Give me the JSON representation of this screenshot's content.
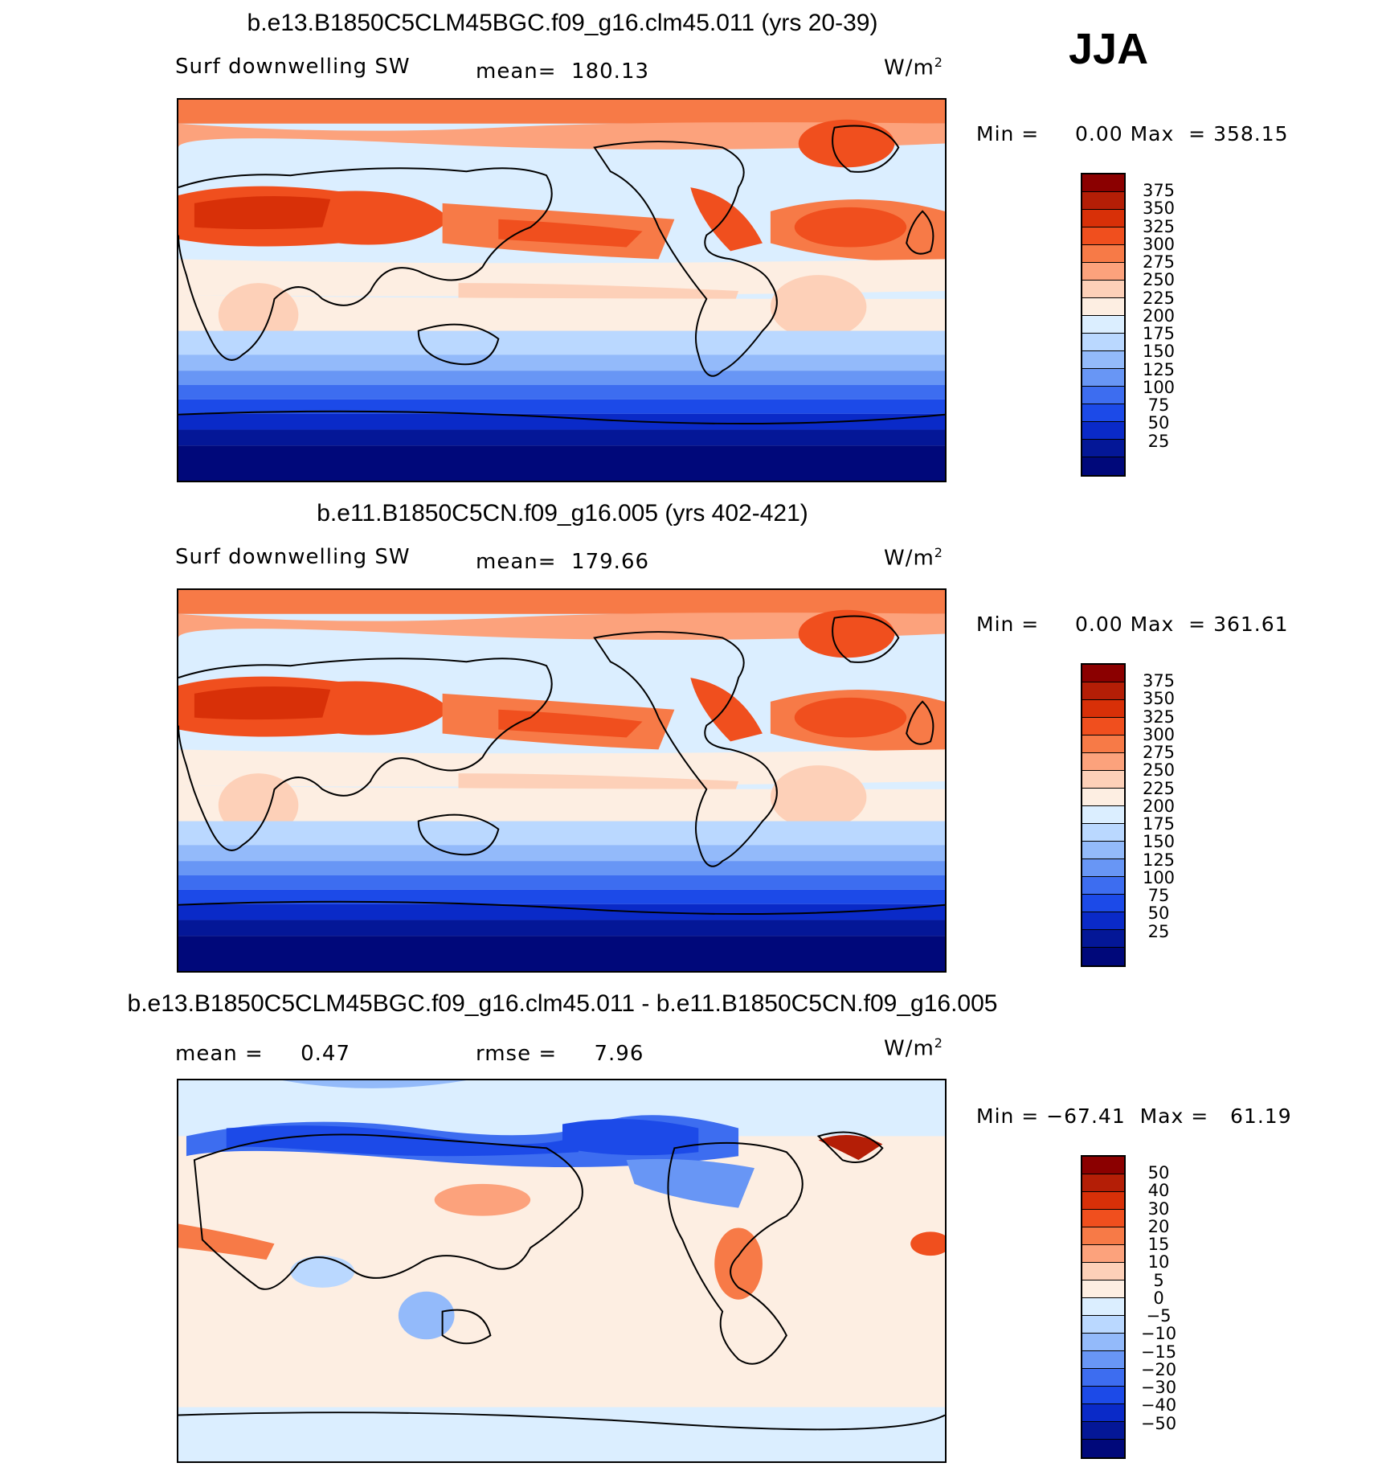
{
  "season": "JJA",
  "panels": [
    {
      "title": "b.e13.B1850C5CLM45BGC.f09_g16.clm45.011 (yrs 20-39)",
      "variable": "Surf downwelling SW",
      "stat": "mean=  180.13",
      "units": "W/m",
      "units_exp": "2",
      "minmax": "Min =     0.00 Max  = 358.15",
      "colorbar": {
        "colors": [
          "#8b0000",
          "#b41e06",
          "#d83008",
          "#f04f1e",
          "#f77a47",
          "#fca27c",
          "#fdd0b8",
          "#fdeee2",
          "#dbeeff",
          "#bad8ff",
          "#93bafa",
          "#6896f5",
          "#3d6df0",
          "#1c4ae8",
          "#0a2ac8",
          "#041797",
          "#00087a"
        ],
        "ticks": [
          "375",
          "350",
          "325",
          "300",
          "275",
          "250",
          "225",
          "200",
          "175",
          "150",
          "125",
          "100",
          "75",
          "50",
          "25"
        ]
      }
    },
    {
      "title": "b.e11.B1850C5CN.f09_g16.005 (yrs 402-421)",
      "variable": "Surf downwelling SW",
      "stat": "mean=  179.66",
      "units": "W/m",
      "units_exp": "2",
      "minmax": "Min =     0.00 Max  = 361.61",
      "colorbar": {
        "colors": [
          "#8b0000",
          "#b41e06",
          "#d83008",
          "#f04f1e",
          "#f77a47",
          "#fca27c",
          "#fdd0b8",
          "#fdeee2",
          "#dbeeff",
          "#bad8ff",
          "#93bafa",
          "#6896f5",
          "#3d6df0",
          "#1c4ae8",
          "#0a2ac8",
          "#041797",
          "#00087a"
        ],
        "ticks": [
          "375",
          "350",
          "325",
          "300",
          "275",
          "250",
          "225",
          "200",
          "175",
          "150",
          "125",
          "100",
          "75",
          "50",
          "25"
        ]
      }
    },
    {
      "title": "b.e13.B1850C5CLM45BGC.f09_g16.clm45.011 - b.e11.B1850C5CN.f09_g16.005",
      "mean": "mean =     0.47",
      "rmse": "rmse =     7.96",
      "units": "W/m",
      "units_exp": "2",
      "minmax": "Min = −67.41  Max =   61.19",
      "colorbar": {
        "colors": [
          "#8b0000",
          "#b41e06",
          "#d83008",
          "#f04f1e",
          "#f77a47",
          "#fca27c",
          "#fdd0b8",
          "#fdeee2",
          "#dbeeff",
          "#bad8ff",
          "#93bafa",
          "#6896f5",
          "#3d6df0",
          "#1c4ae8",
          "#0a2ac8",
          "#041797",
          "#00087a"
        ],
        "ticks": [
          "50",
          "40",
          "30",
          "20",
          "15",
          "10",
          "5",
          "0",
          "−5",
          "−10",
          "−15",
          "−20",
          "−30",
          "−40",
          "−50"
        ]
      }
    }
  ]
}
